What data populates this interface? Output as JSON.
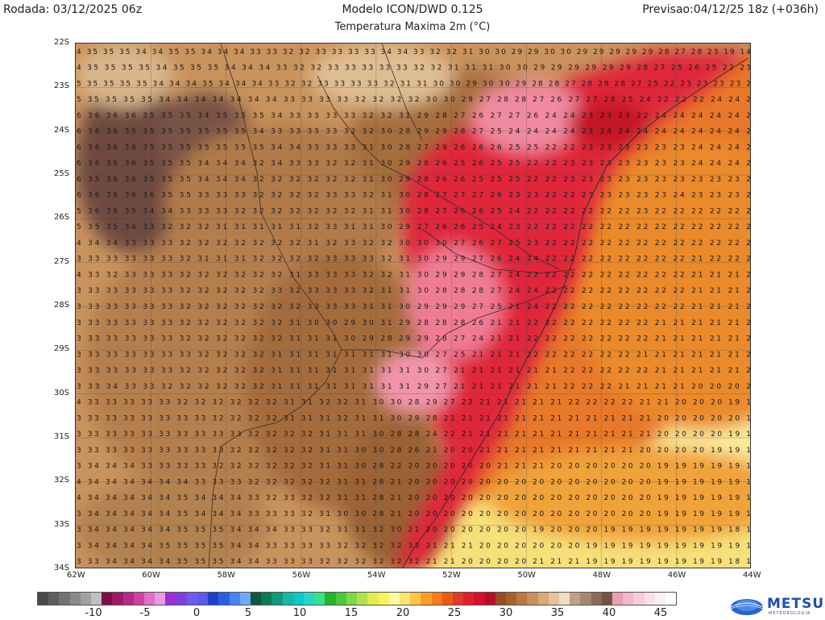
{
  "header": {
    "run_date": "Rodada: 03/12/2025 06z",
    "model": "Modelo ICON/DWD 0.125",
    "variable": "Temperatura Maxima 2m (°C)",
    "forecast": "Previsao:04/12/25 18z (+036h)"
  },
  "map": {
    "lat_labels": [
      "22S",
      "23S",
      "24S",
      "25S",
      "26S",
      "27S",
      "28S",
      "29S",
      "30S",
      "31S",
      "32S",
      "33S",
      "34S"
    ],
    "lon_labels": [
      "62W",
      "60W",
      "58W",
      "56W",
      "54W",
      "52W",
      "50W",
      "48W",
      "46W",
      "44W"
    ],
    "grid_rows": [
      "4 35 35 35 34 34 35 35 34 34 34 33 33 32 32 33 33 33 33 34 34 33 32 32 31 30 30 29 29 30 30 29 29 29 29 29 28 27 28 23 19 14",
      "4 35 35 35 35 34 35 35 35 34 34 34 33 32 32 33 33 33 33 33 32 32 31 31 31 30 30 29 29 29 29 29 29 28 27 25 26 25 22 23",
      "5 35 35 35 35 34 34 34 35 34 34 34 33 32 32 33 33 33 33 32 31 31 30 30 29 30 30 29 28 28 27 28 28 28 27 25 22 23 23 23 23 2",
      "5 35 35 35 35 34 34 34 34 34 34 34 33 33 33 33 32 32 32 32 30 30 29 27 28 28 27 26 27 27 28 25 24 22 22 22 24 24 2",
      "6 36 36 36 35 35 35 34 35 35 35 34 33 33 33 33 32 32 31 29 28 27 26 27 27 26 24 24 23 23 23 22 24 24 24 24 24 2",
      "6 36 36 35 35 35 35 35 35 35 34 33 33 33 33 32 32 30 28 29 29 28 27 25 24 24 24 24 23 24 24 24 24 24 24 24 24 2",
      "6 36 36 36 35 35 35 35 35 35 35 34 34 33 33 33 31 30 28 27 29 26 26 26 25 25 22 22 23 23 23 23 23 23 24 24 24 2",
      "6 36 36 36 35 35 35 34 34 34 32 34 33 33 32 32 31 30 29 28 26 25 26 25 25 22 22 23 23 23 23 23 23 23 24 24 24 2",
      "6 35 36 36 35 35 35 34 34 34 32 32 32 32 32 32 31 30 29 28 26 26 25 25 25 22 22 23 23 23 23 23 23 23 23 23 23 2",
      "6 36 36 36 36 35 35 33 33 33 32 32 32 32 33 33 32 31 30 28 27 27 27 26 23 23 22 22 23 23 23 23 23 24 23 23 23 2",
      "5 36 36 35 34 34 33 33 33 32 32 32 32 32 32 32 31 31 30 28 27 26 26 25 24 22 22 22 22 22 22 23 22 22 22 22 22 2",
      "5 35 35 34 33 32 32 32 31 31 31 31 31 32 33 31 31 30 29 27 26 26 25 24 23 22 22 22 22 22 22 22 22 22 22 22 22 2",
      "4 34 34 33 33 33 32 32 32 32 32 32 32 31 32 33 32 32 30 30 30 27 26 27 25 23 22 22 22 22 22 22 22 22 22 22 22 2",
      "3 33 33 33 33 33 32 31 31 31 32 32 32 32 33 33 33 32 31 30 29 29 27 26 24 24 22 22 22 22 22 22 22 22 21 22 22 2",
      "4 33 32 33 33 33 32 32 32 32 32 32 31 33 33 33 32 32 31 30 29 29 28 27 24 22 22 22 22 22 22 22 22 22 21 21 21 2",
      "3 33 33 33 33 33 32 32 32 32 32 33 32 33 33 33 32 31 31 30 28 28 28 27 24 24 22 22 22 22 22 22 22 22 21 21 21 2",
      "3 33 33 33 33 33 32 32 32 32 32 32 32 33 33 33 31 31 30 29 29 29 27 25 21 24 22 22 22 22 22 22 22 22 21 21 21 2",
      "3 33 33 33 33 33 32 32 32 32 32 32 31 30 30 29 30 31 29 28 28 28 26 21 21 22 22 22 22 22 22 22 21 21 21 21 21 2",
      "3 33 33 33 33 33 32 32 32 32 32 32 31 31 31 30 29 28 29 29 28 27 24 21 21 22 22 22 22 22 22 22 21 21 21 21 21 2",
      "3 33 33 33 33 33 33 32 32 32 32 31 31 31 31 31 31 31 30 30 27 25 21 21 21 22 22 22 22 22 22 21 21 21 21 21 21 2",
      "3 33 33 33 33 33 32 32 32 32 32 31 31 31 31 31 31 31 31 30 27 21 21 21 21 21 21 22 22 22 22 22 21 21 21 21 21 2",
      "3 33 34 33 33 32 32 32 32 32 32 31 31 31 31 31 31 31 31 29 27 21 21 21 21 21 21 22 22 22 21 21 21 21 20 20 20 2",
      "4 33 33 33 33 33 32 32 32 32 32 32 31 31 32 32 31 30 30 28 29 27 22 21 21 21 21 21 22 22 22 22 21 21 20 20 20 19 1",
      "3 33 33 33 33 33 33 33 32 32 32 32 31 31 31 32 31 31 30 29 28 21 21 21 21 21 21 21 21 21 21 21 21 20 20 20 20 20 1",
      "3 33 33 33 33 33 33 33 33 33 32 32 32 32 31 31 31 30 28 28 24 22 21 21 21 21 21 21 21 21 21 21 21 20 20 20 20 19 1",
      "3 33 33 33 33 33 33 33 33 32 32 32 32 32 31 31 30 30 28 26 21 20 20 21 21 21 21 21 21 21 21 21 20 20 20 20 19 19 1",
      "3 34 34 34 33 33 33 33 32 32 32 32 32 32 31 31 30 28 22 20 20 20 20 20 21 21 21 20 20 20 20 20 20 19 19 19 19 19 1",
      "4 34 34 34 34 34 34 33 33 33 32 32 32 32 32 31 31 28 21 20 20 20 20 20 20 20 20 20 20 20 20 20 20 19 19 19 19 19 1",
      "4 34 34 34 34 34 35 34 34 34 33 32 33 32 32 31 31 28 21 20 20 20 20 20 20 20 20 20 20 20 20 20 20 19 19 19 19 19 1",
      "3 34 34 34 34 34 35 34 34 34 33 33 33 32 31 30 30 28 21 20 20 20 20 20 20 20 20 20 20 20 20 20 20 19 19 19 19 19 1",
      "3 34 34 34 34 34 35 35 35 34 34 34 33 33 32 31 31 32 30 21 20 20 20 20 20 20 19 20 20 20 19 19 19 19 19 19 19 18 1",
      "3 34 34 34 34 35 35 35 35 34 34 33 33 33 33 32 32 32 32 32 21 21 21 20 20 20 20 20 20 19 19 19 19 19 19 19 19 19 1",
      "3 33 34 34 34 34 35 35 35 34 34 33 33 33 32 32 32 32 32 32 21 21 20 20 20 20 21 21 21 19 19 19 19 19 19 19 19 18 1"
    ]
  },
  "legend": {
    "labels": [
      "-10",
      "-5",
      "0",
      "5",
      "10",
      "15",
      "20",
      "25",
      "30",
      "35",
      "40",
      "45"
    ],
    "colors": [
      "#4a4a4a",
      "#5e5e5e",
      "#737373",
      "#8a8a8a",
      "#a2a2a2",
      "#c0c0c0",
      "#7a0d4a",
      "#9a1a66",
      "#b52a84",
      "#cc44a3",
      "#e070c4",
      "#ea9ade",
      "#9a2fd8",
      "#7f3ee0",
      "#6f5af0",
      "#5a5bea",
      "#1b40c8",
      "#2c5ee2",
      "#4b82f2",
      "#74a7f8",
      "#0d5a3a",
      "#0e7a56",
      "#10987a",
      "#15b8a4",
      "#0cc7c7",
      "#24d8c8",
      "#3ae08a",
      "#28b428",
      "#4cc93a",
      "#7ed84a",
      "#b4e24c",
      "#e2ec4e",
      "#f6f35a",
      "#fdf6a6",
      "#ffe276",
      "#fdc447",
      "#fb9d2b",
      "#f47c1d",
      "#e85b10",
      "#e2382a",
      "#e01e2e",
      "#d1122a",
      "#b31024",
      "#9a4b26",
      "#a6602e",
      "#b87840",
      "#c8905a",
      "#d8aa78",
      "#e6c49a",
      "#f2dcbe",
      "#bfa08a",
      "#a98672",
      "#8e6a5a",
      "#73524a",
      "#e8a0b0",
      "#f0b8c8",
      "#f6ccd8",
      "#fbdfe8",
      "#fdeef4",
      "#ffffff"
    ]
  },
  "logo": {
    "name": "METSUL",
    "tagline": "METEOROLOGIA"
  }
}
